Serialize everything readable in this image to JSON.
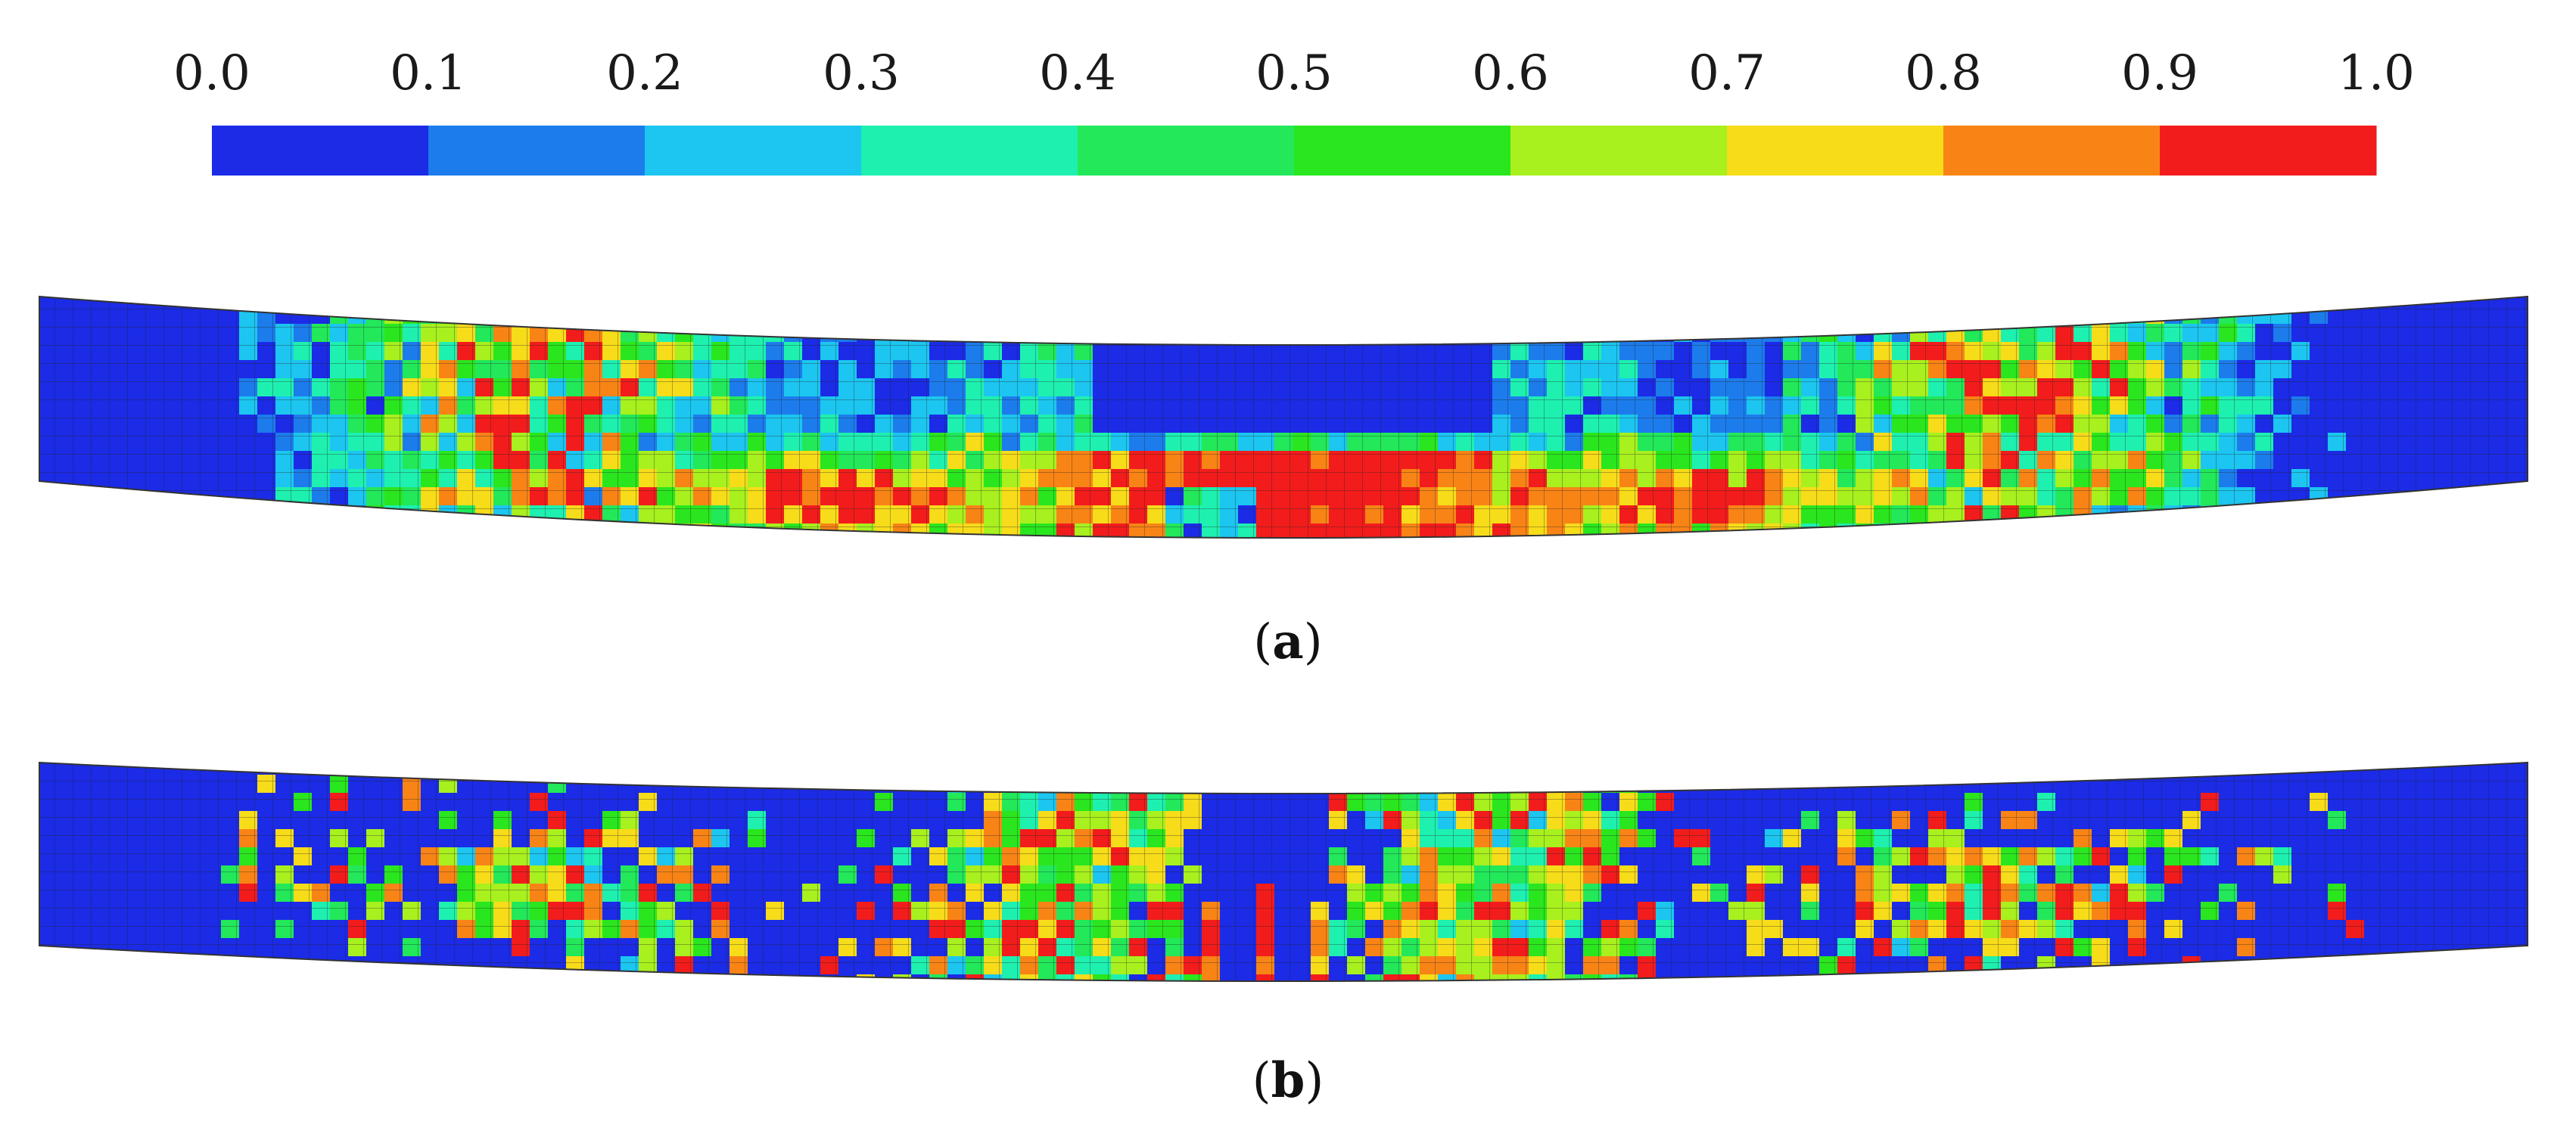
{
  "colorbar": {
    "ticks": [
      "0.0",
      "0.1",
      "0.2",
      "0.3",
      "0.4",
      "0.5",
      "0.6",
      "0.7",
      "0.8",
      "0.9",
      "1.0"
    ],
    "segments": [
      {
        "from": 0.0,
        "to": 0.1,
        "color": "#1b2be6"
      },
      {
        "from": 0.1,
        "to": 0.2,
        "color": "#1c7cec"
      },
      {
        "from": 0.2,
        "to": 0.3,
        "color": "#1cc6f0"
      },
      {
        "from": 0.3,
        "to": 0.4,
        "color": "#1ef0b0"
      },
      {
        "from": 0.4,
        "to": 0.5,
        "color": "#22e85a"
      },
      {
        "from": 0.5,
        "to": 0.6,
        "color": "#2ae61e"
      },
      {
        "from": 0.6,
        "to": 0.7,
        "color": "#a8f01e"
      },
      {
        "from": 0.7,
        "to": 0.8,
        "color": "#f7dc1a"
      },
      {
        "from": 0.8,
        "to": 0.9,
        "color": "#f88416"
      },
      {
        "from": 0.9,
        "to": 1.0,
        "color": "#f21c1c"
      }
    ]
  },
  "panels": [
    {
      "caption_open": "(",
      "caption_letter": "a",
      "caption_close": ")",
      "description_key": "damage-contour-a",
      "mesh_color": "#222222"
    },
    {
      "caption_open": "(",
      "caption_letter": "b",
      "caption_close": ")",
      "description_key": "damage-contour-b",
      "mesh_color": "#222222"
    }
  ]
}
